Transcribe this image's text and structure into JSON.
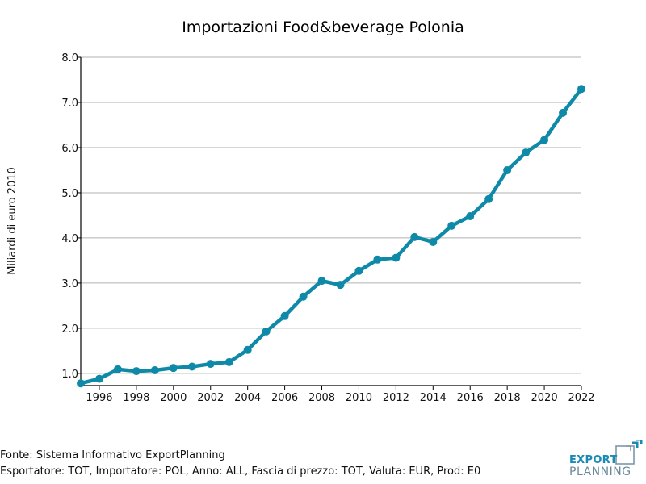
{
  "chart_data": {
    "type": "line",
    "title": "Importazioni Food&beverage Polonia",
    "xlabel": "",
    "ylabel": "Miliardi di euro 2010",
    "x": [
      1995,
      1996,
      1997,
      1998,
      1999,
      2000,
      2001,
      2002,
      2003,
      2004,
      2005,
      2006,
      2007,
      2008,
      2009,
      2010,
      2011,
      2012,
      2013,
      2014,
      2015,
      2016,
      2017,
      2018,
      2019,
      2020,
      2021,
      2022
    ],
    "series": [
      {
        "name": "Importazioni Food&beverage Polonia",
        "color": "#0e8aa8",
        "values": [
          0.78,
          0.88,
          1.09,
          1.05,
          1.07,
          1.12,
          1.15,
          1.21,
          1.25,
          1.52,
          1.93,
          2.27,
          2.7,
          3.05,
          2.96,
          3.27,
          3.52,
          3.56,
          4.02,
          3.91,
          4.27,
          4.48,
          4.86,
          5.5,
          5.89,
          6.17,
          6.77,
          7.3
        ]
      }
    ],
    "xlim": [
      1995,
      2022
    ],
    "ylim": [
      0.73,
      8.0
    ],
    "xticks": [
      1996,
      1998,
      2000,
      2002,
      2004,
      2006,
      2008,
      2010,
      2012,
      2014,
      2016,
      2018,
      2020,
      2022
    ],
    "xtick_labels": [
      "1996",
      "1998",
      "2000",
      "2002",
      "2004",
      "2006",
      "2008",
      "2010",
      "2012",
      "2014",
      "2016",
      "2018",
      "2020",
      "2022"
    ],
    "yticks": [
      1,
      2,
      3,
      4,
      5,
      6,
      7,
      8
    ],
    "ytick_labels": [
      "1.0",
      "2.0",
      "3.0",
      "4.0",
      "5.0",
      "6.0",
      "7.0",
      "8.0"
    ],
    "grid": "horizontal",
    "legend": "none"
  },
  "footer": {
    "source": "Fonte: Sistema Informativo ExportPlanning",
    "params": "Esportatore: TOT, Importatore: POL, Anno: ALL, Fascia di prezzo: TOT, Valuta: EUR, Prod: E0"
  },
  "logo": {
    "line1": "EXPORT",
    "line2": "PLANNING"
  }
}
